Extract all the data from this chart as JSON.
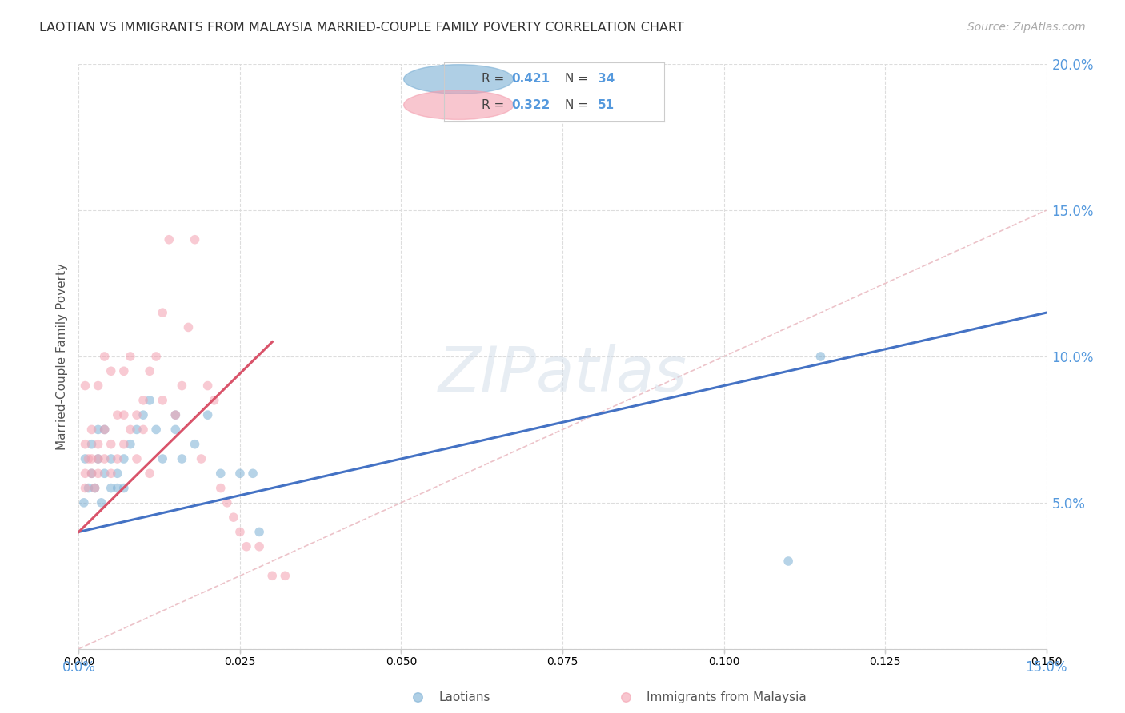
{
  "title": "LAOTIAN VS IMMIGRANTS FROM MALAYSIA MARRIED-COUPLE FAMILY POVERTY CORRELATION CHART",
  "source": "Source: ZipAtlas.com",
  "ylabel": "Married-Couple Family Poverty",
  "x_min": 0.0,
  "x_max": 0.15,
  "y_min": 0.0,
  "y_max": 0.2,
  "x_ticks": [
    0.0,
    0.025,
    0.05,
    0.075,
    0.1,
    0.125,
    0.15
  ],
  "x_tick_labels_show": [
    true,
    false,
    false,
    false,
    false,
    false,
    true
  ],
  "y_ticks": [
    0.0,
    0.05,
    0.1,
    0.15,
    0.2
  ],
  "y_tick_labels_right": [
    "",
    "5.0%",
    "10.0%",
    "15.0%",
    "20.0%"
  ],
  "series1_name": "Laotians",
  "series1_color": "#7bafd4",
  "series2_name": "Immigrants from Malaysia",
  "series2_color": "#f4a0b0",
  "trend1_color": "#4472c4",
  "trend2_color": "#d9536a",
  "diagonal_color": "#e8b4bc",
  "background_color": "#ffffff",
  "grid_color": "#dddddd",
  "title_color": "#333333",
  "source_color": "#aaaaaa",
  "axis_color": "#5599dd",
  "r1": "0.421",
  "n1": "34",
  "r2": "0.322",
  "n2": "51",
  "trend1_x0": 0.0,
  "trend1_y0": 0.04,
  "trend1_x1": 0.15,
  "trend1_y1": 0.115,
  "trend2_x0": 0.0,
  "trend2_y0": 0.04,
  "trend2_x1": 0.03,
  "trend2_y1": 0.105,
  "laotians_x": [
    0.0008,
    0.001,
    0.0015,
    0.002,
    0.002,
    0.0025,
    0.003,
    0.003,
    0.0035,
    0.004,
    0.004,
    0.005,
    0.005,
    0.006,
    0.006,
    0.007,
    0.007,
    0.008,
    0.009,
    0.01,
    0.011,
    0.012,
    0.013,
    0.015,
    0.015,
    0.016,
    0.018,
    0.02,
    0.022,
    0.025,
    0.027,
    0.028,
    0.11,
    0.115
  ],
  "laotians_y": [
    0.05,
    0.065,
    0.055,
    0.06,
    0.07,
    0.055,
    0.065,
    0.075,
    0.05,
    0.06,
    0.075,
    0.055,
    0.065,
    0.055,
    0.06,
    0.055,
    0.065,
    0.07,
    0.075,
    0.08,
    0.085,
    0.075,
    0.065,
    0.075,
    0.08,
    0.065,
    0.07,
    0.08,
    0.06,
    0.06,
    0.06,
    0.04,
    0.03,
    0.1
  ],
  "malaysia_x": [
    0.001,
    0.001,
    0.001,
    0.001,
    0.0015,
    0.002,
    0.002,
    0.002,
    0.0025,
    0.003,
    0.003,
    0.003,
    0.003,
    0.004,
    0.004,
    0.004,
    0.005,
    0.005,
    0.005,
    0.006,
    0.006,
    0.007,
    0.007,
    0.007,
    0.008,
    0.008,
    0.009,
    0.009,
    0.01,
    0.01,
    0.011,
    0.011,
    0.012,
    0.013,
    0.013,
    0.014,
    0.015,
    0.016,
    0.017,
    0.018,
    0.019,
    0.02,
    0.021,
    0.022,
    0.023,
    0.024,
    0.025,
    0.026,
    0.028,
    0.03,
    0.032
  ],
  "malaysia_y": [
    0.055,
    0.06,
    0.07,
    0.09,
    0.065,
    0.06,
    0.065,
    0.075,
    0.055,
    0.06,
    0.065,
    0.07,
    0.09,
    0.065,
    0.075,
    0.1,
    0.06,
    0.07,
    0.095,
    0.065,
    0.08,
    0.07,
    0.08,
    0.095,
    0.075,
    0.1,
    0.065,
    0.08,
    0.075,
    0.085,
    0.06,
    0.095,
    0.1,
    0.085,
    0.115,
    0.14,
    0.08,
    0.09,
    0.11,
    0.14,
    0.065,
    0.09,
    0.085,
    0.055,
    0.05,
    0.045,
    0.04,
    0.035,
    0.035,
    0.025,
    0.025
  ],
  "marker_size": 70,
  "watermark_text": "ZIPatlas",
  "watermark_color": "#d0dce8",
  "watermark_alpha": 0.5
}
